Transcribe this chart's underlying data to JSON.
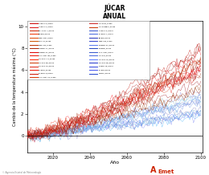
{
  "title": "JÚCAR",
  "subtitle": "ANUAL",
  "xlabel": "Año",
  "ylabel": "Cambio de la temperatura máxima (°C)",
  "xlim": [
    2006,
    2101
  ],
  "ylim": [
    -1.5,
    10.5
  ],
  "yticks": [
    0,
    2,
    4,
    6,
    8,
    10
  ],
  "xticks": [
    2020,
    2040,
    2060,
    2080,
    2100
  ],
  "year_start": 2006,
  "year_end": 2100,
  "n_years": 95,
  "n_rcp85_lines": 19,
  "n_rcp45_lines": 15,
  "background_color": "#ffffff",
  "watermark": "© Agencia Estatal de Meteorología"
}
